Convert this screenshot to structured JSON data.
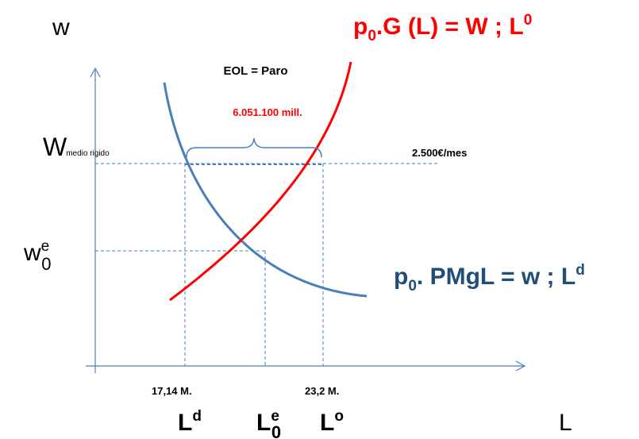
{
  "axis": {
    "y_label": "w",
    "x_label": "L"
  },
  "supply_curve": {
    "label_p": "p",
    "label_sub": "0",
    "label_main": ".G (L) = W ; L",
    "label_sup": "0",
    "color": "#ff0000"
  },
  "demand_curve": {
    "label_p": "p",
    "label_sub": "0",
    "label_main": ". PMgL = w ; L",
    "label_sup": "d",
    "color": "#4a7ebb",
    "label_color": "#1f4e79"
  },
  "wage_rigid": {
    "symbol": "W",
    "sub": "medio rigido",
    "value_label": "2.500€/mes"
  },
  "wage_equilibrium": {
    "symbol": "w",
    "sup": "e",
    "sub": "0"
  },
  "unemployment": {
    "title": "EOL = Paro",
    "amount": "6.051.100 mill.",
    "amount_color": "#ff0000"
  },
  "quantities": {
    "ld_value": "17,14 M.",
    "lo_value": "23,2 M.",
    "ld_symbol": "L",
    "ld_sup": "d",
    "le_symbol": "L",
    "le_sup": "e",
    "le_sub": "0",
    "lo_symbol": "L",
    "lo_sup": "o"
  }
}
